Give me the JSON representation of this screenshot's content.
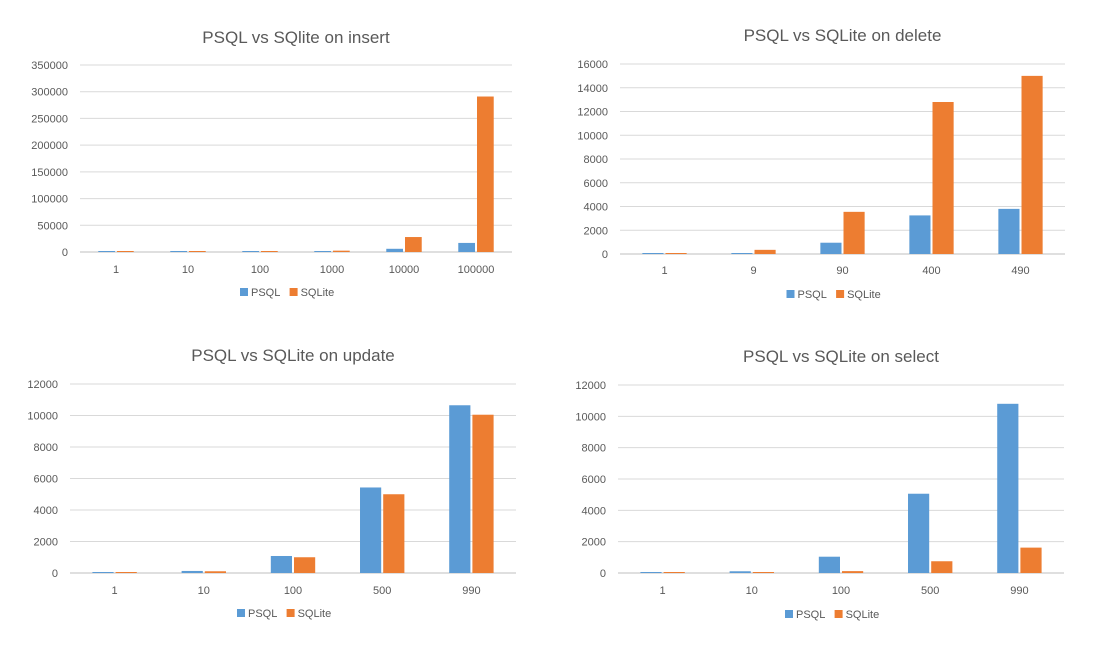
{
  "colors": {
    "psql": "#5b9bd5",
    "sqlite": "#ed7d31"
  },
  "chart_data": [
    {
      "type": "bar",
      "title": "PSQL vs SQlite on insert",
      "categories": [
        "1",
        "10",
        "100",
        "1000",
        "10000",
        "100000"
      ],
      "ylim": [
        0,
        350000
      ],
      "yticks": [
        0,
        50000,
        100000,
        150000,
        200000,
        250000,
        300000,
        350000
      ],
      "legend": "bottom",
      "grid": true,
      "series": [
        {
          "name": "PSQL",
          "values": [
            50,
            60,
            100,
            600,
            6000,
            17000
          ]
        },
        {
          "name": "SQLite",
          "values": [
            50,
            150,
            300,
            2500,
            28000,
            291000
          ]
        }
      ]
    },
    {
      "type": "bar",
      "title": "PSQL vs SQLite on delete",
      "categories": [
        "1",
        "9",
        "90",
        "400",
        "490"
      ],
      "ylim": [
        0,
        16000
      ],
      "yticks": [
        0,
        2000,
        4000,
        6000,
        8000,
        10000,
        12000,
        14000,
        16000
      ],
      "legend": "bottom",
      "grid": true,
      "series": [
        {
          "name": "PSQL",
          "values": [
            30,
            80,
            950,
            3250,
            3800
          ]
        },
        {
          "name": "SQLite",
          "values": [
            50,
            350,
            3550,
            12800,
            15000
          ]
        }
      ]
    },
    {
      "type": "bar",
      "title": "PSQL vs SQLite on update",
      "categories": [
        "1",
        "10",
        "100",
        "500",
        "990"
      ],
      "ylim": [
        0,
        12000
      ],
      "yticks": [
        0,
        2000,
        4000,
        6000,
        8000,
        10000,
        12000
      ],
      "legend": "bottom",
      "grid": true,
      "series": [
        {
          "name": "PSQL",
          "values": [
            40,
            130,
            1080,
            5430,
            10650
          ]
        },
        {
          "name": "SQLite",
          "values": [
            30,
            110,
            1000,
            5000,
            10050
          ]
        }
      ]
    },
    {
      "type": "bar",
      "title": "PSQL vs SQLite on select",
      "categories": [
        "1",
        "10",
        "100",
        "500",
        "990"
      ],
      "ylim": [
        0,
        12000
      ],
      "yticks": [
        0,
        2000,
        4000,
        6000,
        8000,
        10000,
        12000
      ],
      "legend": "bottom",
      "grid": true,
      "series": [
        {
          "name": "PSQL",
          "values": [
            30,
            110,
            1040,
            5060,
            10800
          ]
        },
        {
          "name": "SQLite",
          "values": [
            20,
            40,
            120,
            750,
            1620
          ]
        }
      ]
    }
  ]
}
